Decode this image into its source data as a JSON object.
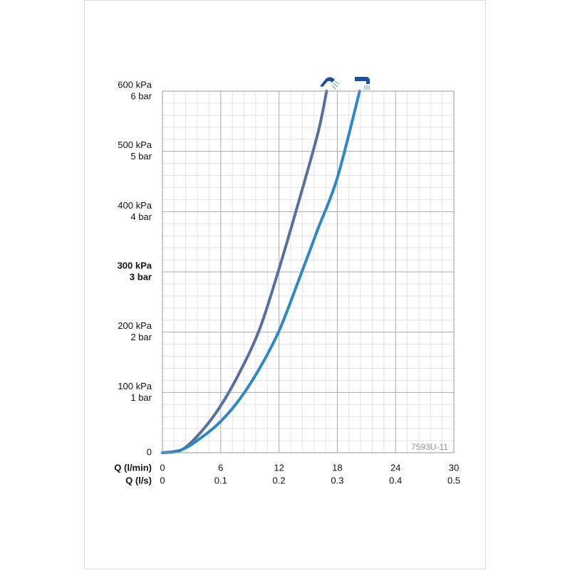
{
  "chart_data": {
    "type": "line",
    "xlabel": "Q (l/min)",
    "x2label": "Q (l/s)",
    "xlim": [
      0,
      30
    ],
    "xticks": [
      0,
      6,
      12,
      18,
      24,
      30
    ],
    "x2lim": [
      0,
      0.5
    ],
    "x2ticks": [
      0,
      0.1,
      0.2,
      0.3,
      0.4,
      0.5
    ],
    "ylim": [
      0,
      600
    ],
    "yticks": [
      0,
      {
        "value": 100,
        "label": "100 kPa"
      },
      {
        "value": 200,
        "label": "200 kPa"
      },
      {
        "value": 300,
        "label": "300 kPa",
        "bold": true
      },
      {
        "value": 400,
        "label": "400 kPa"
      },
      {
        "value": 500,
        "label": "500 kPa"
      },
      {
        "value": 600,
        "label": "600 kPa"
      }
    ],
    "y2lim": [
      0,
      6
    ],
    "y2ticks": [
      {
        "value": 1,
        "label": "1 bar"
      },
      {
        "value": 2,
        "label": "2 bar"
      },
      {
        "value": 3,
        "label": "3 bar",
        "bold": true
      },
      {
        "value": 4,
        "label": "4 bar"
      },
      {
        "value": 5,
        "label": "5 bar"
      },
      {
        "value": 6,
        "label": "6 bar"
      }
    ],
    "grid": true,
    "minor_grid": 5,
    "annotation": "7593U-11",
    "series": [
      {
        "color": "#56709f",
        "x": [
          0,
          2,
          4,
          6,
          8,
          10,
          12,
          14,
          16,
          16.9
        ],
        "values": [
          0,
          5,
          35,
          78,
          135,
          205,
          305,
          415,
          530,
          600
        ]
      },
      {
        "color": "#2f87c6",
        "x": [
          0,
          2,
          4,
          6,
          8,
          10,
          12,
          14,
          16,
          18,
          20.3
        ],
        "values": [
          0,
          5,
          25,
          52,
          90,
          140,
          202,
          285,
          371,
          456,
          600
        ]
      }
    ]
  }
}
